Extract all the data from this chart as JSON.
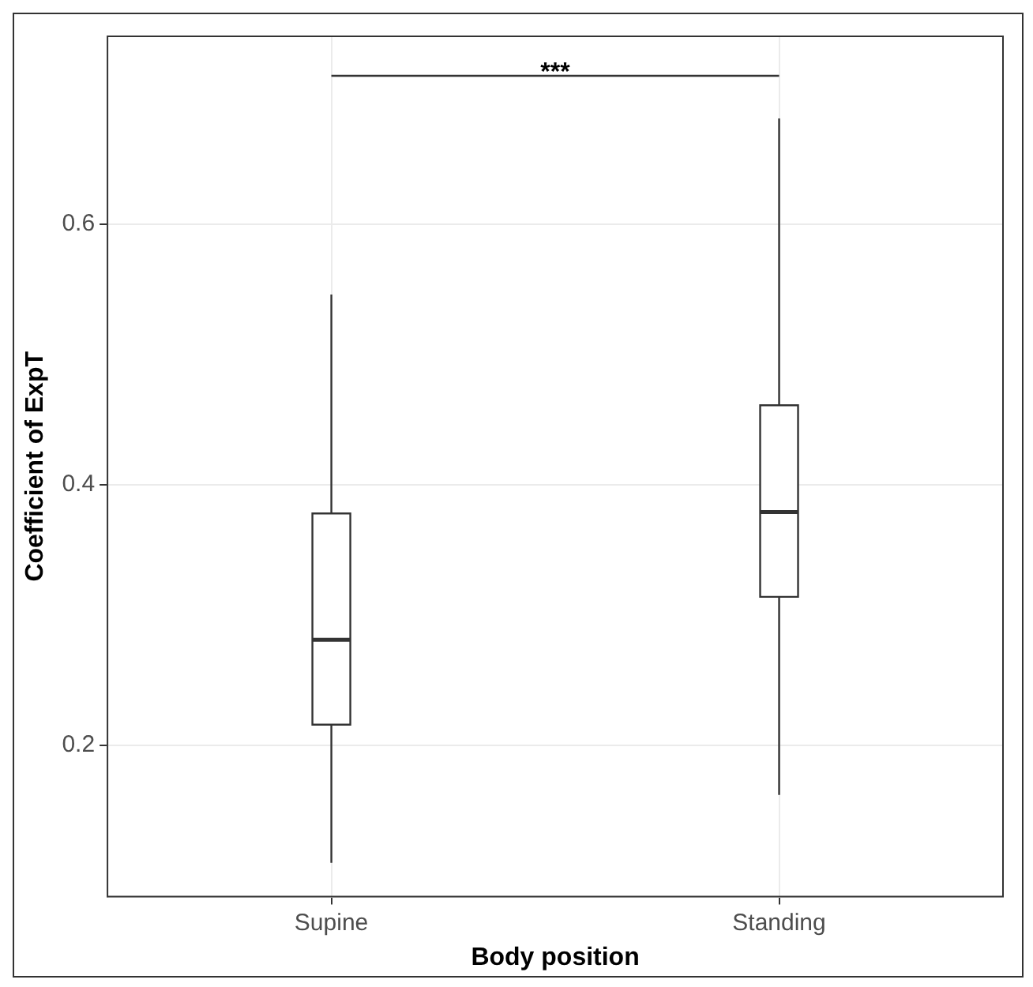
{
  "chart_data": {
    "type": "box",
    "xlabel": "Body position",
    "ylabel": "Coefficient of ExpT",
    "categories": [
      "Supine",
      "Standing"
    ],
    "boxes": [
      {
        "low": 0.11,
        "q1": 0.216,
        "median": 0.281,
        "q3": 0.378,
        "high": 0.546
      },
      {
        "low": 0.162,
        "q1": 0.314,
        "median": 0.379,
        "q3": 0.461,
        "high": 0.681
      }
    ],
    "ylim": [
      0.084,
      0.744
    ],
    "yticks": [
      0.2,
      0.4,
      0.6
    ],
    "grid": true,
    "legend": false,
    "annotations": [
      "***"
    ]
  }
}
